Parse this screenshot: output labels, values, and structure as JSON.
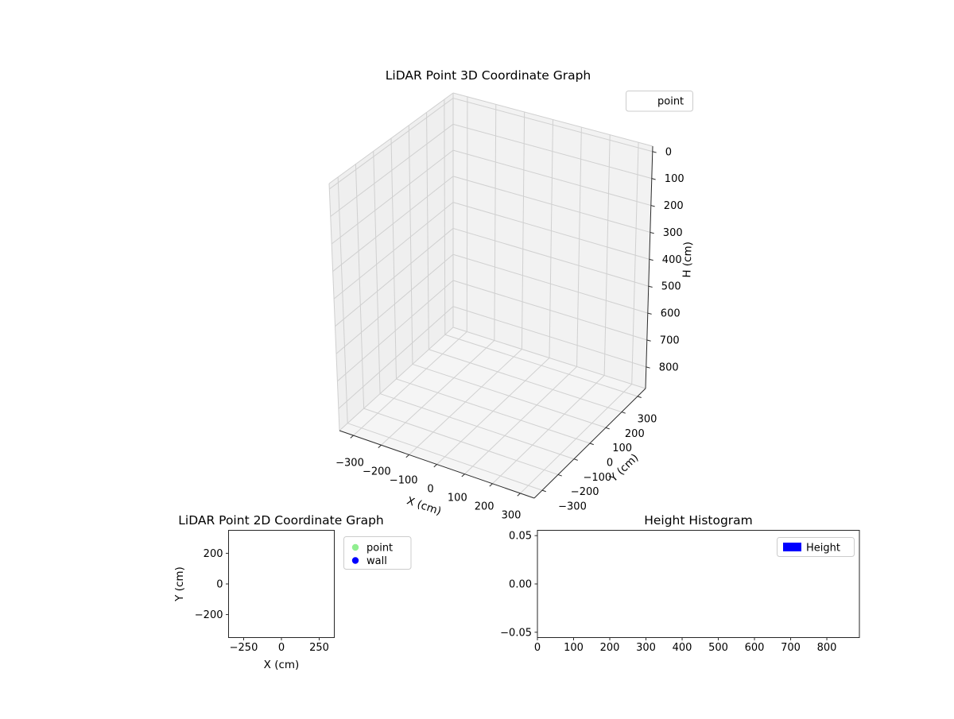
{
  "figure": {
    "background": "#ffffff"
  },
  "chart_data": [
    {
      "id": "lidar-3d",
      "type": "scatter3d",
      "title": "LiDAR Point 3D Coordinate Graph",
      "xlabel": "X (cm)",
      "ylabel": "Y (cm)",
      "zlabel": "H (cm)",
      "xlim": [
        -350,
        350
      ],
      "ylim": [
        -350,
        350
      ],
      "zlim": [
        -20,
        880
      ],
      "zaxis_inverted": true,
      "grid": true,
      "xticks": [
        -300,
        -200,
        -100,
        0,
        100,
        200,
        300
      ],
      "xtick_labels": [
        "−300",
        "−200",
        "−100",
        "0",
        "100",
        "200",
        "300"
      ],
      "yticks": [
        -300,
        -200,
        -100,
        0,
        100,
        200,
        300
      ],
      "ytick_labels": [
        "−300",
        "−200",
        "−100",
        "0",
        "100",
        "200",
        "300"
      ],
      "zticks": [
        0,
        100,
        200,
        300,
        400,
        500,
        600,
        700,
        800
      ],
      "ztick_labels": [
        "0",
        "100",
        "200",
        "300",
        "400",
        "500",
        "600",
        "700",
        "800"
      ],
      "legend": [
        {
          "label": "point"
        }
      ],
      "legend_position": "upper right (outside axes, top right of figure)",
      "series": [
        {
          "name": "point",
          "points": []
        }
      ],
      "pane_color": "#f2f2f2",
      "grid_color": "#d0d0d0"
    },
    {
      "id": "lidar-2d",
      "type": "scatter",
      "title": "LiDAR Point 2D Coordinate Graph",
      "xlabel": "X (cm)",
      "ylabel": "Y (cm)",
      "xlim": [
        -350,
        350
      ],
      "ylim": [
        -350,
        350
      ],
      "grid": false,
      "xticks": [
        -250,
        0,
        250
      ],
      "xtick_labels": [
        "−250",
        "0",
        "250"
      ],
      "yticks": [
        -200,
        0,
        200
      ],
      "ytick_labels": [
        "−200",
        "0",
        "200"
      ],
      "legend": [
        {
          "label": "point",
          "color": "#90ee90"
        },
        {
          "label": "wall",
          "color": "#0000ff"
        }
      ],
      "legend_position": "outside right of axes",
      "series": [
        {
          "name": "point",
          "color": "#90ee90",
          "points": []
        },
        {
          "name": "wall",
          "color": "#0000ff",
          "points": []
        }
      ]
    },
    {
      "id": "height-histogram",
      "type": "bar",
      "title": "Height Histogram",
      "xlabel": "",
      "ylabel": "",
      "xlim": [
        0,
        890
      ],
      "ylim": [
        -0.0555,
        0.0555
      ],
      "grid": false,
      "xticks": [
        0,
        100,
        200,
        300,
        400,
        500,
        600,
        700,
        800
      ],
      "xtick_labels": [
        "0",
        "100",
        "200",
        "300",
        "400",
        "500",
        "600",
        "700",
        "800"
      ],
      "yticks": [
        -0.05,
        0,
        0.05
      ],
      "ytick_labels": [
        "−0.05",
        "0.00",
        "0.05"
      ],
      "legend": [
        {
          "label": "Height",
          "color": "#0000ff"
        }
      ],
      "legend_position": "upper right (inside axes)",
      "values": []
    }
  ]
}
